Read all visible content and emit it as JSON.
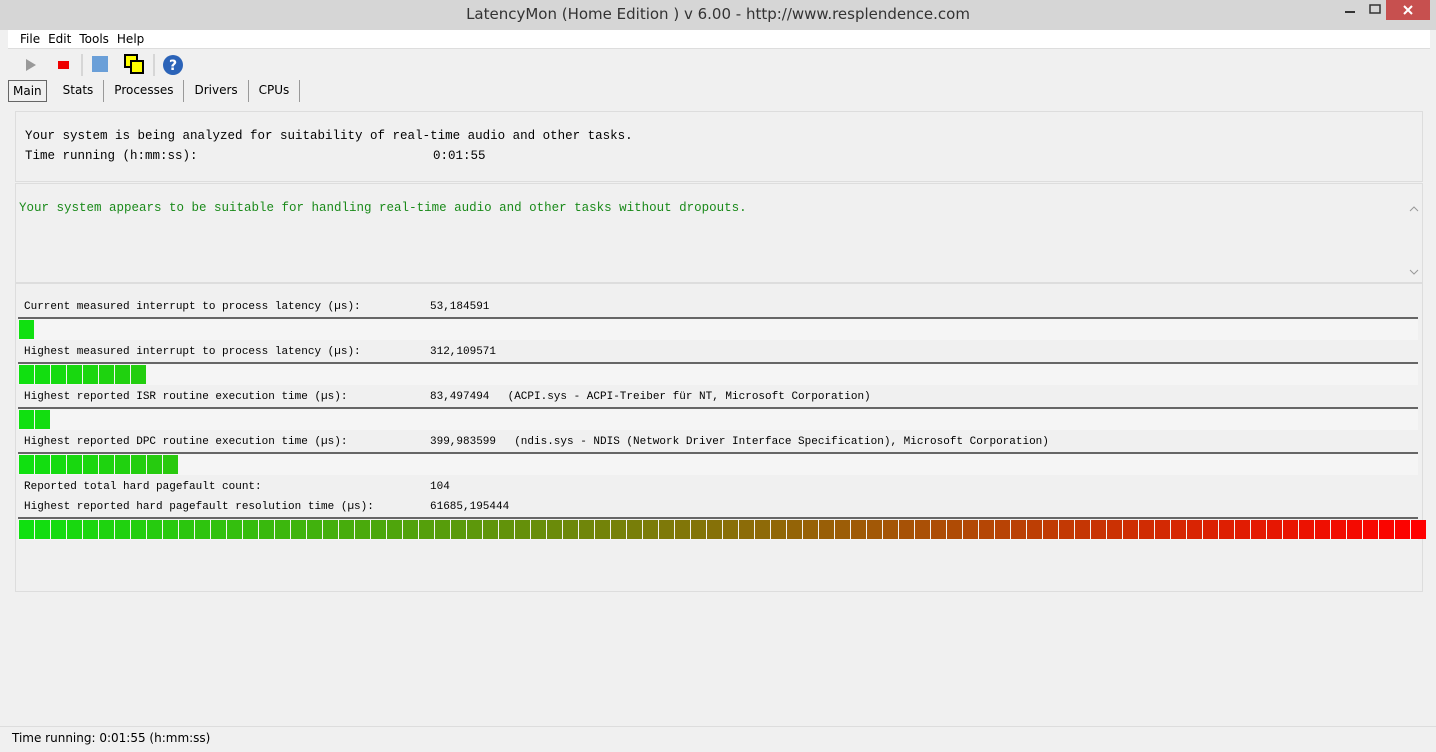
{
  "window": {
    "title": "LatencyMon  (Home Edition )  v 6.00 - http://www.resplendence.com"
  },
  "menu": [
    "File",
    "Edit",
    "Tools",
    "Help"
  ],
  "tabs": [
    "Main",
    "Stats",
    "Processes",
    "Drivers",
    "CPUs"
  ],
  "header": {
    "line1": "Your system is being analyzed for suitability of real-time audio and other tasks.",
    "time_label": "Time running (h:mm:ss):",
    "time_value": "0:01:55"
  },
  "verdict": "Your system appears to be suitable for handling real-time audio and other tasks without dropouts.",
  "meter_total": 88,
  "metrics": [
    {
      "label": "Current measured interrupt to process latency (µs):",
      "value": "53,184591",
      "meter_segments": 1
    },
    {
      "label": "Highest measured interrupt to process latency (µs):",
      "value": "312,109571",
      "meter_segments": 8
    },
    {
      "label": "Highest reported ISR routine execution time (µs):",
      "value": "83,497494",
      "detail": "(ACPI.sys - ACPI-Treiber für NT, Microsoft Corporation)",
      "meter_segments": 2
    },
    {
      "label": "Highest reported DPC routine execution time (µs):",
      "value": "399,983599",
      "detail": "(ndis.sys - NDIS (Network Driver Interface Specification), Microsoft Corporation)",
      "meter_segments": 10
    },
    {
      "label": "Reported total hard pagefault count:",
      "value": "104"
    },
    {
      "label": "Highest reported hard pagefault resolution time (µs):",
      "value": "61685,195444",
      "meter_segments": 88
    }
  ],
  "status": "Time running: 0:01:55  (h:mm:ss)"
}
